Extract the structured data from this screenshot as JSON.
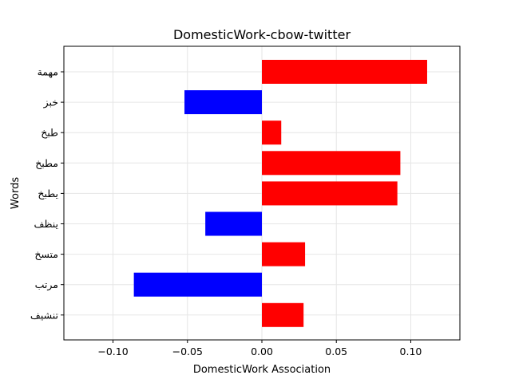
{
  "chart_data": {
    "type": "bar",
    "orientation": "horizontal",
    "title": "DomesticWork-cbow-twitter",
    "xlabel": "DomesticWork Association",
    "ylabel": "Words",
    "categories": [
      "مهمة",
      "خبز",
      "طبخ",
      "مطبخ",
      "يطبخ",
      "ينظف",
      "متسخ",
      "مرتب",
      "تنشيف"
    ],
    "values": [
      0.111,
      -0.052,
      0.013,
      0.093,
      0.091,
      -0.038,
      0.029,
      -0.086,
      0.028
    ],
    "xlim": [
      -0.133,
      0.133
    ],
    "xticks": [
      -0.1,
      -0.05,
      0.0,
      0.05,
      0.1
    ],
    "xtick_labels": [
      "−0.10",
      "−0.05",
      "0.00",
      "0.05",
      "0.10"
    ],
    "grid": true,
    "colors": {
      "positive": "#ff0000",
      "negative": "#0000ff",
      "grid": "#e6e6e6",
      "axis": "#000000"
    }
  }
}
